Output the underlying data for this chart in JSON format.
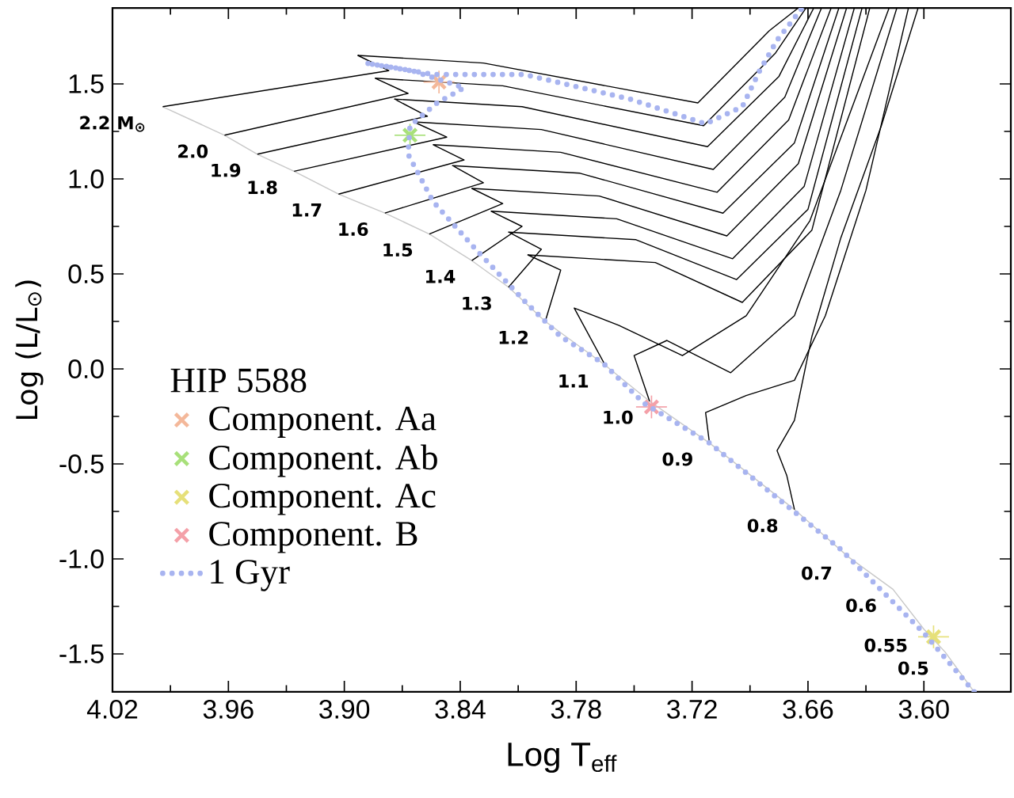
{
  "chart_data": {
    "type": "line",
    "xlabel": "Log T$_{eff}$",
    "ylabel": "Log (L/L$_{⊙}$)",
    "legend_title": "HIP 5588",
    "legend": "bottom left",
    "xlim": [
      4.02,
      3.555
    ],
    "ylim": [
      -1.7,
      1.9
    ],
    "xticks": [
      4.02,
      3.96,
      {
        "value": 3.9,
        "label": "3.90"
      },
      3.84,
      3.78,
      3.72,
      3.66,
      {
        "value": 3.6,
        "label": "3.60"
      }
    ],
    "yticks": [
      -1.5,
      {
        "value": -1.0,
        "label": "-1.0"
      },
      -0.5,
      {
        "value": 0.0,
        "label": "0.0"
      },
      0.5,
      {
        "value": 1.0,
        "label": "1.0"
      },
      1.5
    ],
    "annotations": [
      {
        "text": "2.2 M$_{⊙}$",
        "x": 3.994,
        "y": 1.38
      },
      {
        "text": "2.0",
        "x": 3.962,
        "y": 1.23
      },
      {
        "text": "1.9",
        "x": 3.945,
        "y": 1.13
      },
      {
        "text": "1.8",
        "x": 3.926,
        "y": 1.04
      },
      {
        "text": "1.7",
        "x": 3.903,
        "y": 0.92
      },
      {
        "text": "1.6",
        "x": 3.879,
        "y": 0.82
      },
      {
        "text": "1.5",
        "x": 3.856,
        "y": 0.71
      },
      {
        "text": "1.4",
        "x": 3.834,
        "y": 0.57
      },
      {
        "text": "1.3",
        "x": 3.815,
        "y": 0.43
      },
      {
        "text": "1.2",
        "x": 3.796,
        "y": 0.25
      },
      {
        "text": "1.1",
        "x": 3.765,
        "y": 0.02
      },
      {
        "text": "1.0",
        "x": 3.742,
        "y": -0.17
      },
      {
        "text": "0.9",
        "x": 3.711,
        "y": -0.39
      },
      {
        "text": "0.8",
        "x": 3.667,
        "y": -0.74
      },
      {
        "text": "0.7",
        "x": 3.639,
        "y": -0.99
      },
      {
        "text": "0.6",
        "x": 3.616,
        "y": -1.16
      },
      {
        "text": "0.55",
        "x": 3.6,
        "y": -1.37
      },
      {
        "text": "0.5",
        "x": 3.589,
        "y": -1.49
      }
    ],
    "series": [
      {
        "color": "#c8c8c8",
        "x": [
          3.994,
          3.962,
          3.945,
          3.926,
          3.903,
          3.879,
          3.856,
          3.834,
          3.815,
          3.796,
          3.765,
          3.742,
          3.711,
          3.667,
          3.639,
          3.616,
          3.6,
          3.589,
          3.574
        ],
        "values": [
          1.38,
          1.23,
          1.13,
          1.04,
          0.92,
          0.82,
          0.71,
          0.57,
          0.43,
          0.25,
          0.02,
          -0.17,
          -0.39,
          -0.74,
          -0.99,
          -1.16,
          -1.37,
          -1.49,
          -1.7
        ]
      },
      {
        "color": "#000000",
        "x": [
          3.994,
          3.877,
          3.893,
          3.828,
          3.717,
          3.68,
          3.665
        ],
        "values": [
          1.38,
          1.57,
          1.65,
          1.61,
          1.4,
          1.78,
          1.9
        ]
      },
      {
        "color": "#000000",
        "x": [
          3.962,
          3.867,
          3.884,
          3.818,
          3.714,
          3.677,
          3.661
        ],
        "values": [
          1.23,
          1.45,
          1.53,
          1.49,
          1.28,
          1.66,
          1.9
        ]
      },
      {
        "color": "#000000",
        "x": [
          3.945,
          3.857,
          3.874,
          3.808,
          3.712,
          3.675,
          3.657
        ],
        "values": [
          1.13,
          1.33,
          1.42,
          1.38,
          1.17,
          1.54,
          1.9
        ]
      },
      {
        "color": "#000000",
        "x": [
          3.926,
          3.847,
          3.864,
          3.798,
          3.709,
          3.672,
          3.653
        ],
        "values": [
          1.04,
          1.22,
          1.3,
          1.26,
          1.05,
          1.43,
          1.9
        ]
      },
      {
        "color": "#000000",
        "x": [
          3.903,
          3.838,
          3.854,
          3.788,
          3.707,
          3.67,
          3.648
        ],
        "values": [
          0.92,
          1.1,
          1.18,
          1.14,
          0.93,
          1.31,
          1.9
        ]
      },
      {
        "color": "#000000",
        "x": [
          3.879,
          3.828,
          3.844,
          3.778,
          3.704,
          3.667,
          3.644
        ],
        "values": [
          0.82,
          0.98,
          1.07,
          1.03,
          0.82,
          1.19,
          1.9
        ]
      },
      {
        "color": "#000000",
        "x": [
          3.856,
          3.818,
          3.834,
          3.768,
          3.702,
          3.665,
          3.64
        ],
        "values": [
          0.71,
          0.87,
          0.95,
          0.91,
          0.7,
          1.08,
          1.9
        ]
      },
      {
        "color": "#000000",
        "x": [
          3.834,
          3.808,
          3.824,
          3.759,
          3.699,
          3.662,
          3.636
        ],
        "values": [
          0.57,
          0.75,
          0.83,
          0.79,
          0.58,
          0.96,
          1.9
        ]
      },
      {
        "color": "#000000",
        "x": [
          3.815,
          3.798,
          3.815,
          3.749,
          3.697,
          3.66,
          3.632
        ],
        "values": [
          0.43,
          0.63,
          0.72,
          0.68,
          0.47,
          0.84,
          1.9
        ]
      },
      {
        "color": "#000000",
        "x": [
          3.796,
          3.788,
          3.805,
          3.739,
          3.694,
          3.658,
          3.628
        ],
        "values": [
          0.25,
          0.52,
          0.6,
          0.56,
          0.35,
          0.73,
          1.9
        ]
      },
      {
        "color": "#000000",
        "x": [
          3.765,
          3.781,
          3.758,
          3.725,
          3.692,
          3.659,
          3.618
        ],
        "values": [
          0.02,
          0.32,
          0.23,
          0.07,
          0.28,
          0.78,
          1.9
        ]
      },
      {
        "color": "#000000",
        "x": [
          3.742,
          3.75,
          3.733,
          3.7,
          3.667,
          3.643,
          3.614
        ],
        "values": [
          -0.17,
          0.07,
          0.15,
          -0.02,
          0.28,
          0.94,
          1.9
        ]
      },
      {
        "color": "#000000",
        "x": [
          3.711,
          3.713,
          3.692,
          3.667,
          3.651,
          3.63,
          3.608
        ],
        "values": [
          -0.39,
          -0.23,
          -0.14,
          -0.06,
          0.28,
          0.94,
          1.9
        ]
      },
      {
        "color": "#000000",
        "x": [
          3.667,
          3.671,
          3.676,
          3.667,
          3.658,
          3.643,
          3.622,
          3.603
        ],
        "values": [
          -0.74,
          -0.56,
          -0.43,
          -0.27,
          0.17,
          0.69,
          1.28,
          1.9
        ]
      },
      {
        "type": "scatter",
        "name": "Component. Aa",
        "color": "#f4b89a",
        "marker": "cross",
        "x": [
          3.851
        ],
        "values": [
          1.51
        ],
        "errors": [
          0.06
        ],
        "xerrors": [
          0.008
        ]
      },
      {
        "type": "scatter",
        "name": "Component. Ab",
        "color": "#a8e07a",
        "marker": "cross",
        "x": [
          3.866
        ],
        "values": [
          1.23
        ],
        "errors": [
          0.06
        ],
        "xerrors": [
          0.008
        ]
      },
      {
        "type": "scatter",
        "name": "Component. Ac",
        "color": "#e6e07a",
        "marker": "cross",
        "x": [
          3.595
        ],
        "values": [
          -1.41
        ],
        "errors": [
          0.06
        ],
        "xerrors": [
          0.008
        ]
      },
      {
        "type": "scatter",
        "name": "Component. B",
        "color": "#f4a0a8",
        "marker": "cross",
        "x": [
          3.741
        ],
        "values": [
          -0.2
        ],
        "errors": [
          0.06
        ],
        "xerrors": [
          0.008
        ]
      },
      {
        "name": "1 Gyr",
        "color": "#a8b4f0",
        "line_style": "dotted",
        "x": [
          3.574,
          3.6,
          3.643,
          3.711,
          3.745,
          3.766,
          3.788,
          3.807,
          3.832,
          3.854,
          3.867,
          3.866,
          3.852,
          3.838,
          3.865,
          3.889,
          3.854,
          3.807,
          3.752,
          3.713,
          3.694,
          3.685,
          3.676,
          3.663
        ],
        "values": [
          -1.7,
          -1.39,
          -0.95,
          -0.39,
          -0.18,
          0.03,
          0.17,
          0.36,
          0.63,
          0.88,
          1.13,
          1.28,
          1.4,
          1.48,
          1.57,
          1.61,
          1.55,
          1.55,
          1.42,
          1.29,
          1.38,
          1.57,
          1.73,
          1.9
        ]
      }
    ]
  }
}
